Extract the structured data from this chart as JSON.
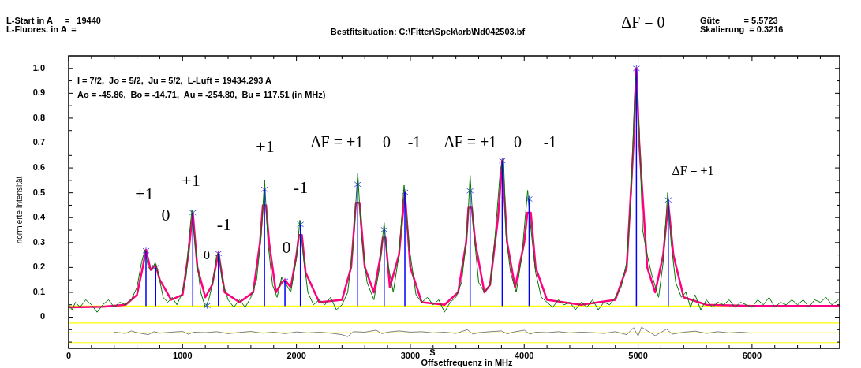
{
  "chart_data": {
    "type": "line",
    "xlabel": "Offsetfrequenz in MHz",
    "ylabel": "normierte Intensität",
    "xlim": [
      0,
      6770
    ],
    "ylim": [
      -0.125,
      1.05
    ],
    "xticks": [
      0,
      {
        "value": 200,
        "label": null
      },
      {
        "value": 400,
        "label": null
      },
      {
        "value": 600,
        "label": null
      },
      {
        "value": 800,
        "label": null
      },
      1000,
      {
        "value": 1200,
        "label": null
      },
      {
        "value": 1400,
        "label": null
      },
      {
        "value": 1600,
        "label": null
      },
      {
        "value": 1800,
        "label": null
      },
      2000,
      {
        "value": 2200,
        "label": null
      },
      {
        "value": 2400,
        "label": null
      },
      {
        "value": 2600,
        "label": null
      },
      {
        "value": 2800,
        "label": null
      },
      3000,
      {
        "value": 3200,
        "label": null
      },
      {
        "value": 3400,
        "label": null
      },
      {
        "value": 3600,
        "label": null
      },
      {
        "value": 3800,
        "label": null
      },
      4000,
      {
        "value": 4200,
        "label": null
      },
      {
        "value": 4400,
        "label": null
      },
      {
        "value": 4600,
        "label": null
      },
      {
        "value": 4800,
        "label": null
      },
      5000,
      {
        "value": 5200,
        "label": null
      },
      {
        "value": 5400,
        "label": null
      },
      {
        "value": 5600,
        "label": null
      },
      {
        "value": 5800,
        "label": null
      },
      6000,
      {
        "value": 6200,
        "label": null
      },
      {
        "value": 6400,
        "label": null
      },
      {
        "value": 6600,
        "label": null
      }
    ],
    "yticks": [
      {
        "value": -0.1,
        "label": null
      },
      {
        "value": -0.05,
        "label": null
      },
      0,
      {
        "value": 0.05,
        "label": null
      },
      0.1,
      {
        "value": 0.15,
        "label": null
      },
      0.2,
      {
        "value": 0.25,
        "label": null
      },
      0.3,
      {
        "value": 0.35,
        "label": null
      },
      0.4,
      {
        "value": 0.45,
        "label": null
      },
      0.5,
      {
        "value": 0.55,
        "label": null
      },
      0.6,
      {
        "value": 0.65,
        "label": null
      },
      0.7,
      {
        "value": 0.75,
        "label": null
      },
      0.8,
      {
        "value": 0.85,
        "label": null
      },
      0.9,
      {
        "value": 0.95,
        "label": null
      },
      {
        "value": 1,
        "label": "1.0"
      }
    ],
    "grid": false,
    "series": [
      {
        "color": "#007700",
        "x": [
          0,
          30,
          60,
          100,
          150,
          200,
          250,
          300,
          350,
          400,
          450,
          500,
          550,
          600,
          640,
          670,
          700,
          730,
          760,
          790,
          830,
          870,
          910,
          950,
          990,
          1030,
          1060,
          1082,
          1120,
          1160,
          1200,
          1230,
          1270,
          1300,
          1320,
          1350,
          1400,
          1450,
          1500,
          1550,
          1600,
          1650,
          1690,
          1720,
          1750,
          1790,
          1830,
          1870,
          1900,
          1950,
          2000,
          2030,
          2060,
          2100,
          2150,
          2200,
          2250,
          2300,
          2350,
          2400,
          2450,
          2500,
          2538,
          2570,
          2620,
          2680,
          2730,
          2770,
          2800,
          2850,
          2900,
          2945,
          2990,
          3050,
          3100,
          3150,
          3200,
          3250,
          3300,
          3350,
          3400,
          3450,
          3500,
          3525,
          3550,
          3600,
          3650,
          3700,
          3740,
          3790,
          3818,
          3840,
          3880,
          3930,
          3980,
          4030,
          4060,
          4100,
          4150,
          4200,
          4250,
          4300,
          4350,
          4400,
          4450,
          4500,
          4550,
          4600,
          4650,
          4700,
          4750,
          4800,
          4850,
          4900,
          4940,
          4970,
          4978,
          5010,
          5040,
          5080,
          5120,
          5180,
          5220,
          5260,
          5290,
          5330,
          5380,
          5420,
          5460,
          5500,
          5550,
          5600,
          5650,
          5700,
          5750,
          5800,
          5850,
          5900,
          5950,
          6000,
          6050,
          6100,
          6150,
          6200,
          6250,
          6300,
          6350,
          6400,
          6450,
          6500,
          6550,
          6600,
          6650,
          6700,
          6760
        ],
        "values": [
          0.05,
          0.03,
          0.06,
          0.04,
          0.07,
          0.05,
          0.02,
          0.05,
          0.07,
          0.04,
          0.06,
          0.05,
          0.07,
          0.12,
          0.22,
          0.27,
          0.2,
          0.19,
          0.22,
          0.17,
          0.08,
          0.06,
          0.08,
          0.05,
          0.09,
          0.16,
          0.33,
          0.43,
          0.25,
          0.1,
          0.04,
          0.07,
          0.15,
          0.25,
          0.26,
          0.14,
          0.07,
          0.04,
          0.07,
          0.04,
          0.08,
          0.15,
          0.33,
          0.55,
          0.3,
          0.13,
          0.08,
          0.16,
          0.14,
          0.1,
          0.24,
          0.39,
          0.25,
          0.1,
          0.05,
          0.07,
          0.05,
          0.08,
          0.03,
          0.05,
          0.1,
          0.3,
          0.58,
          0.33,
          0.14,
          0.07,
          0.2,
          0.38,
          0.22,
          0.1,
          0.25,
          0.53,
          0.28,
          0.09,
          0.06,
          0.08,
          0.05,
          0.07,
          0.02,
          0.06,
          0.08,
          0.14,
          0.35,
          0.57,
          0.38,
          0.14,
          0.1,
          0.13,
          0.3,
          0.59,
          0.64,
          0.33,
          0.18,
          0.1,
          0.25,
          0.51,
          0.35,
          0.18,
          0.08,
          0.06,
          0.04,
          0.07,
          0.05,
          0.06,
          0.03,
          0.06,
          0.04,
          0.07,
          0.03,
          0.06,
          0.05,
          0.08,
          0.12,
          0.22,
          0.5,
          0.9,
          0.97,
          0.75,
          0.35,
          0.25,
          0.17,
          0.08,
          0.22,
          0.5,
          0.3,
          0.14,
          0.08,
          0.1,
          0.04,
          0.09,
          0.03,
          0.07,
          0.04,
          0.06,
          0.05,
          0.07,
          0.04,
          0.06,
          0.05,
          0.04,
          0.07,
          0.05,
          0.08,
          0.04,
          0.06,
          0.05,
          0.07,
          0.05,
          0.07,
          0.04,
          0.07,
          0.06,
          0.08,
          0.05,
          0.07
        ]
      },
      {
        "color": "#ff0080",
        "x": [
          0,
          300,
          500,
          600,
          650,
          679,
          720,
          764,
          800,
          900,
          1000,
          1050,
          1090,
          1130,
          1200,
          1260,
          1315,
          1370,
          1500,
          1620,
          1680,
          1705,
          1733,
          1760,
          1820,
          1870,
          1899,
          1950,
          2000,
          2022,
          2048,
          2080,
          2200,
          2400,
          2480,
          2522,
          2554,
          2600,
          2680,
          2740,
          2758,
          2782,
          2820,
          2900,
          2952,
          3000,
          3100,
          3300,
          3420,
          3490,
          3510,
          3540,
          3570,
          3650,
          3700,
          3770,
          3807,
          3850,
          3920,
          4000,
          4028,
          4058,
          4100,
          4200,
          4500,
          4800,
          4900,
          4960,
          4985,
          5010,
          5080,
          5150,
          5220,
          5265,
          5310,
          5400,
          5600,
          6000,
          6770
        ],
        "values": [
          0.04,
          0.042,
          0.05,
          0.09,
          0.2,
          0.27,
          0.19,
          0.21,
          0.15,
          0.07,
          0.09,
          0.25,
          0.42,
          0.2,
          0.08,
          0.13,
          0.26,
          0.1,
          0.06,
          0.1,
          0.3,
          0.45,
          0.45,
          0.3,
          0.1,
          0.14,
          0.15,
          0.12,
          0.25,
          0.33,
          0.33,
          0.18,
          0.06,
          0.07,
          0.2,
          0.46,
          0.46,
          0.2,
          0.1,
          0.25,
          0.32,
          0.32,
          0.12,
          0.25,
          0.5,
          0.2,
          0.06,
          0.05,
          0.1,
          0.3,
          0.44,
          0.44,
          0.3,
          0.1,
          0.13,
          0.4,
          0.63,
          0.3,
          0.12,
          0.3,
          0.42,
          0.42,
          0.2,
          0.07,
          0.05,
          0.07,
          0.2,
          0.7,
          1.0,
          0.7,
          0.2,
          0.1,
          0.25,
          0.46,
          0.25,
          0.08,
          0.05,
          0.045,
          0.045
        ]
      },
      {
        "type": "bar",
        "color": "#0000ff",
        "x": [
          679,
          764,
          1090,
          1315,
          1719,
          1899,
          2035,
          2538,
          2770,
          2952,
          3525,
          3807,
          4043,
          4985,
          5265
        ],
        "base": [
          0.045,
          0.045,
          0.045,
          0.045,
          0.045,
          0.045,
          0.045,
          0.045,
          0.045,
          0.045,
          0.045,
          0.045,
          0.045,
          0.045,
          0.045
        ],
        "values": [
          0.222,
          0.155,
          0.375,
          0.211,
          0.469,
          0.1,
          0.328,
          0.489,
          0.307,
          0.457,
          0.463,
          0.584,
          0.43,
          0.955,
          0.426
        ]
      },
      {
        "type": "scatter",
        "color": "#5050ff",
        "marker": "cross",
        "x": [
          679,
          764,
          1090,
          1217,
          1315,
          1719,
          1899,
          2035,
          2538,
          2770,
          2952,
          3525,
          3807,
          4043,
          4985,
          5265
        ],
        "values": [
          0.267,
          0.2,
          0.42,
          0.047,
          0.256,
          0.514,
          0.145,
          0.373,
          0.534,
          0.352,
          0.502,
          0.508,
          0.629,
          0.475,
          1.0,
          0.471
        ]
      },
      {
        "color": "#808080",
        "x": [
          400,
          500,
          550,
          600,
          700,
          750,
          800,
          900,
          1000,
          1050,
          1100,
          1200,
          1300,
          1400,
          1500,
          1600,
          1700,
          1800,
          1900,
          2000,
          2100,
          2200,
          2300,
          2400,
          2450,
          2500,
          2600,
          2700,
          2750,
          2800,
          2900,
          3000,
          3100,
          3200,
          3300,
          3400,
          3500,
          3550,
          3600,
          3700,
          3800,
          3850,
          3900,
          4000,
          4050,
          4100,
          4200,
          4300,
          4400,
          4500,
          4600,
          4700,
          4800,
          4900,
          4960,
          5000,
          5030,
          5100,
          5150,
          5250,
          5300,
          5400,
          5500,
          5600,
          5700,
          5800,
          5900,
          6000
        ],
        "values": [
          -0.06,
          -0.065,
          -0.055,
          -0.062,
          -0.07,
          -0.058,
          -0.064,
          -0.06,
          -0.057,
          -0.068,
          -0.06,
          -0.062,
          -0.058,
          -0.066,
          -0.061,
          -0.057,
          -0.064,
          -0.06,
          -0.066,
          -0.059,
          -0.063,
          -0.06,
          -0.064,
          -0.07,
          -0.078,
          -0.058,
          -0.06,
          -0.052,
          -0.066,
          -0.06,
          -0.055,
          -0.06,
          -0.058,
          -0.063,
          -0.06,
          -0.065,
          -0.05,
          -0.068,
          -0.062,
          -0.058,
          -0.055,
          -0.067,
          -0.06,
          -0.052,
          -0.068,
          -0.06,
          -0.062,
          -0.058,
          -0.063,
          -0.06,
          -0.062,
          -0.065,
          -0.058,
          -0.07,
          -0.042,
          -0.075,
          -0.04,
          -0.06,
          -0.074,
          -0.048,
          -0.068,
          -0.06,
          -0.056,
          -0.065,
          -0.058,
          -0.063,
          -0.06,
          -0.064
        ]
      }
    ],
    "ref_lines": [
      {
        "axis": "y",
        "value": 0.045,
        "color": "#ffff00"
      },
      {
        "axis": "y",
        "value": -0.023,
        "color": "#ffff00"
      },
      {
        "axis": "y",
        "value": -0.063,
        "color": "#ffff00"
      },
      {
        "axis": "y",
        "value": -0.102,
        "color": "#ffff00"
      }
    ],
    "annotations": [
      "L-Start in A     =   19440",
      "L-Fluores. in A  =",
      "Bestfitsituation: C:\\Fitter\\Spek\\arb\\Nd042503.bf",
      "Güte          = 5.5723",
      "Skalierung  = 0.3216",
      "I = 7/2,  Jo = 5/2,  Ju = 5/2,  L-Luft = 19434.293 A",
      "Ao = -45.86,  Bo = -14.71,  Au = -254.80,  Bu = 117.51 (in MHz)",
      "+1",
      "0",
      "+1",
      "0",
      "-1",
      "+1",
      "0",
      "-1",
      "ΔF = +1",
      "0",
      "-1",
      "ΔF = +1",
      "0",
      "-1",
      "ΔF = 0",
      "ΔF = +1",
      "S"
    ]
  }
}
